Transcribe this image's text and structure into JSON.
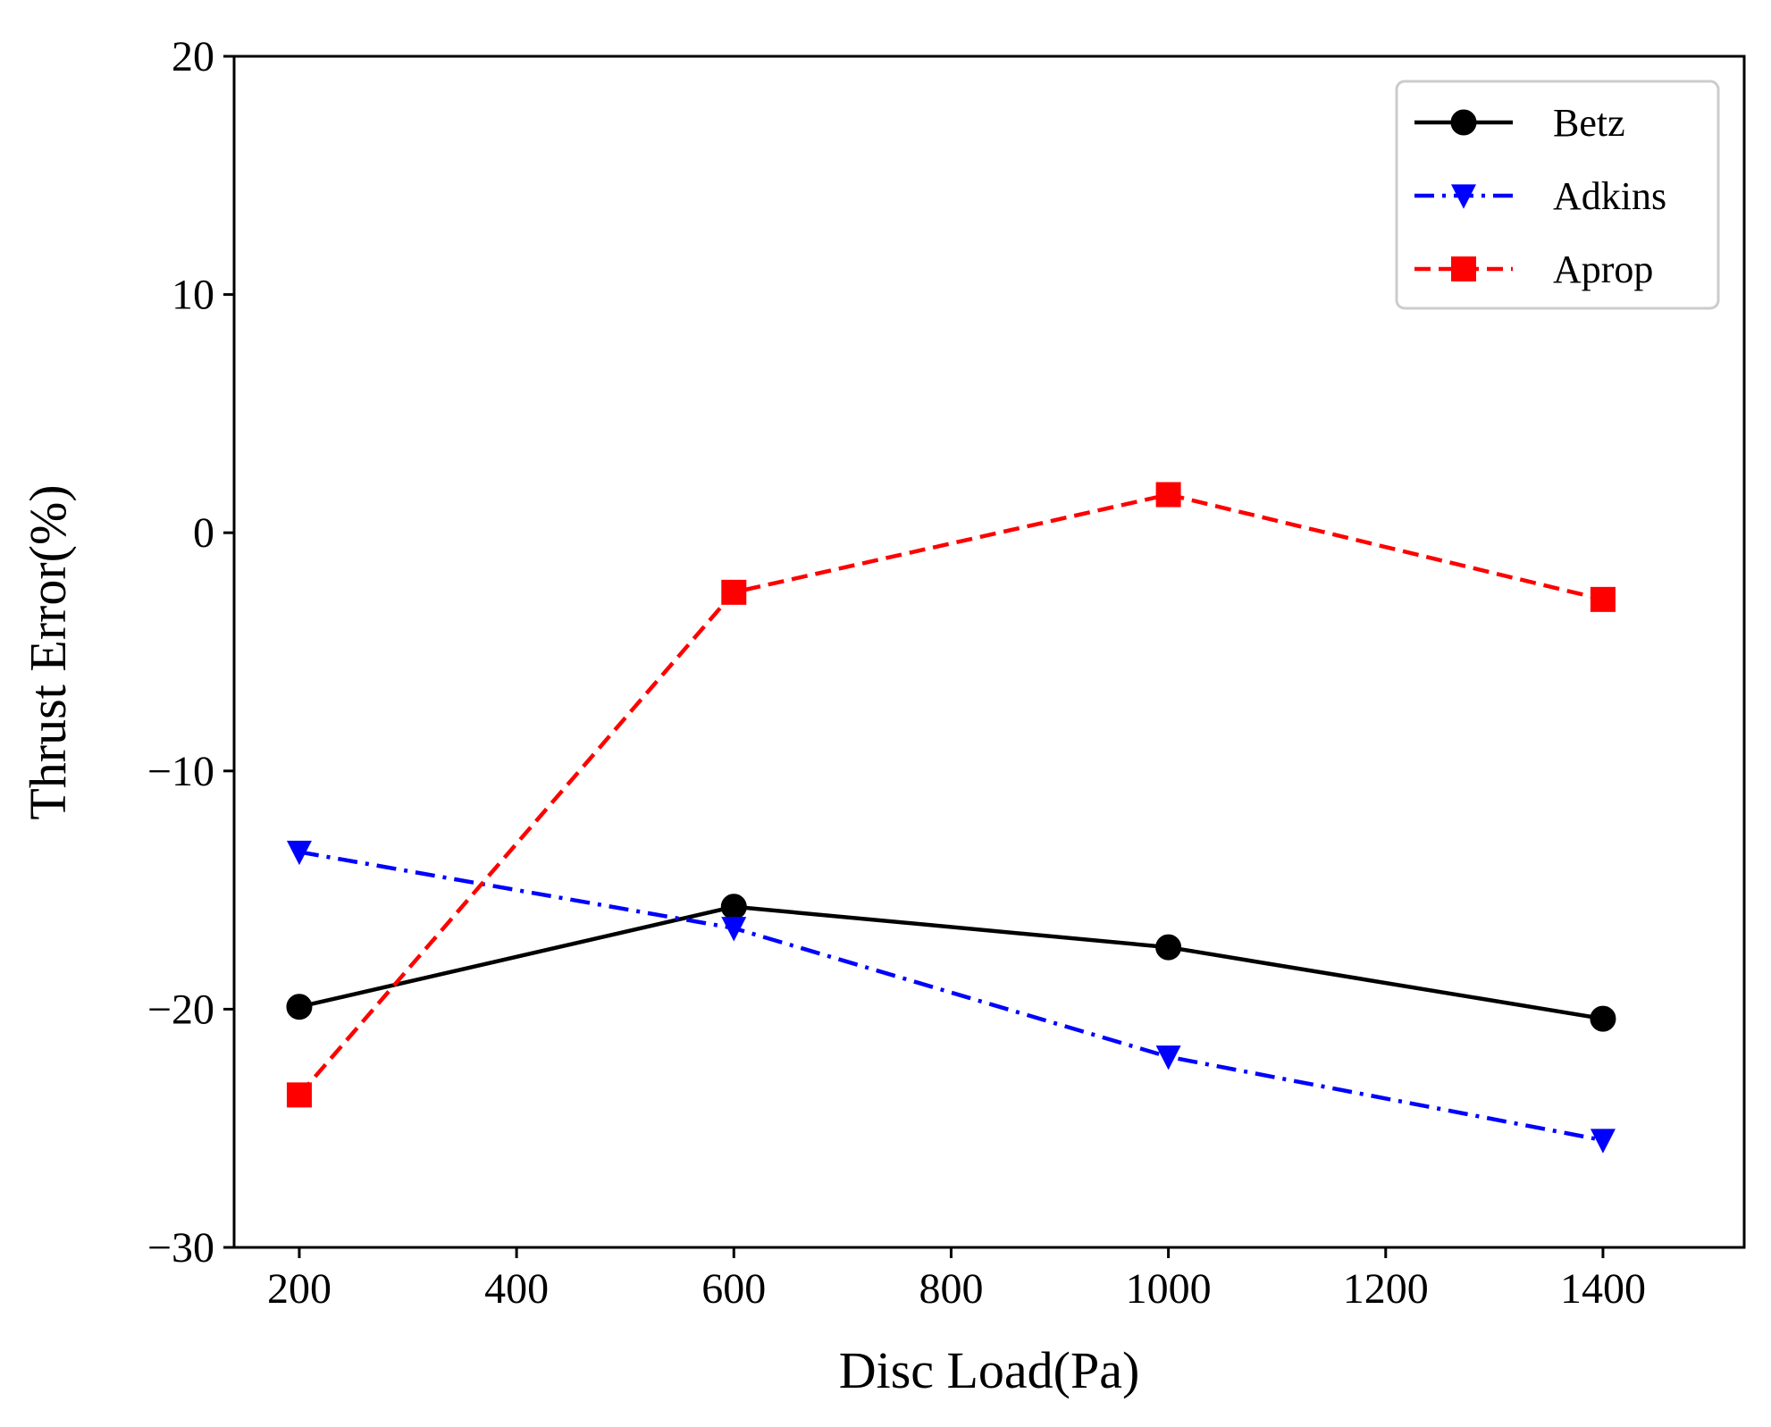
{
  "chart_data": {
    "type": "line",
    "title": "",
    "xlabel": "Disc Load(Pa)",
    "ylabel": "Thrust Error(%)",
    "xlim": [
      140,
      1530
    ],
    "ylim": [
      -30,
      20
    ],
    "xticks": [
      200,
      400,
      600,
      800,
      1000,
      1200,
      1400
    ],
    "yticks": [
      -30,
      -20,
      -10,
      0,
      10,
      20
    ],
    "xtick_labels": [
      "200",
      "400",
      "600",
      "800",
      "1000",
      "1200",
      "1400"
    ],
    "ytick_labels": [
      "−30",
      "−20",
      "−10",
      "0",
      "10",
      "20"
    ],
    "grid": false,
    "legend_position": "top-right",
    "x": [
      200,
      600,
      1000,
      1400
    ],
    "series": [
      {
        "name": "Betz",
        "values": [
          -19.9,
          -15.7,
          -17.4,
          -20.4
        ],
        "color": "#000000",
        "line_style": "solid",
        "marker": "circle"
      },
      {
        "name": "Adkins",
        "values": [
          -13.4,
          -16.6,
          -22.0,
          -25.5
        ],
        "color": "#0000ff",
        "line_style": "dash-dot",
        "marker": "triangle-down"
      },
      {
        "name": "Aprop",
        "values": [
          -23.6,
          -2.5,
          1.6,
          -2.8
        ],
        "color": "#ff0000",
        "line_style": "dashed",
        "marker": "square"
      }
    ]
  }
}
